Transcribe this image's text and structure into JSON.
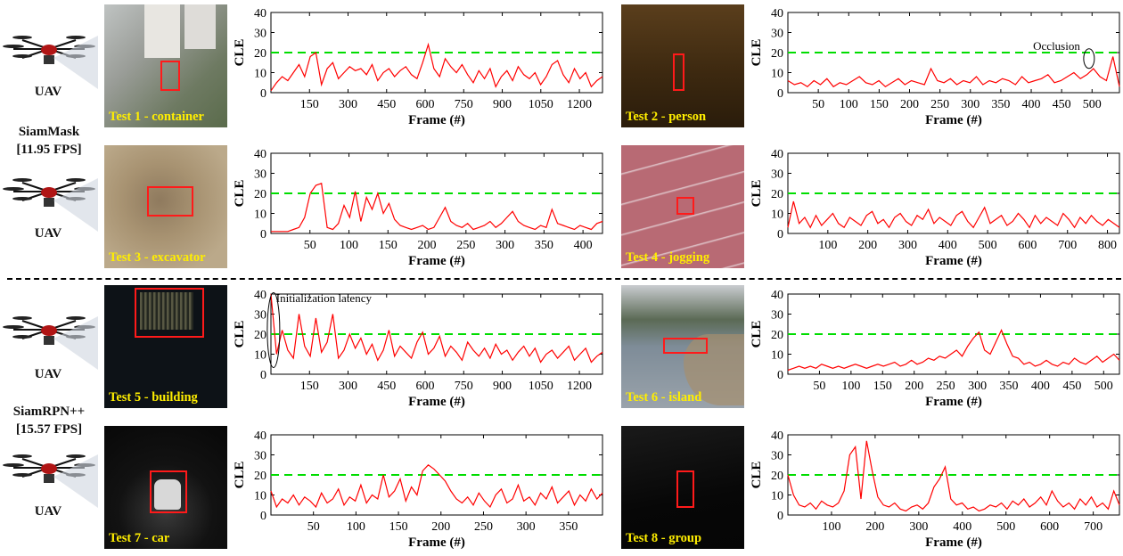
{
  "drones": [
    {
      "label": "UAV"
    },
    {
      "label": "UAV"
    },
    {
      "label": "UAV"
    },
    {
      "label": "UAV"
    }
  ],
  "trackers": [
    {
      "name": "SiamMask",
      "fps": "[11.95 FPS]"
    },
    {
      "name": "SiamRPN++",
      "fps": "[15.57 FPS]"
    }
  ],
  "thumbnails": [
    {
      "caption": "Test 1 - container",
      "bg": "#8c8f8a"
    },
    {
      "caption": "Test 2 - person",
      "bg": "#3a2a12"
    },
    {
      "caption": "Test 3 - excavator",
      "bg": "#a88e6c"
    },
    {
      "caption": "Test 4 - jogging",
      "bg": "#b8707a"
    },
    {
      "caption": "Test 5 - building",
      "bg": "#0e1318"
    },
    {
      "caption": "Test 6 - island",
      "bg": "#6c7884"
    },
    {
      "caption": "Test 7 - car",
      "bg": "#0c0c0c"
    },
    {
      "caption": "Test 8 - group",
      "bg": "#080808"
    }
  ],
  "colors": {
    "error": "#ff0000",
    "threshold": "#00dd00",
    "box": "#ff1a1a",
    "caption": "#ffee00"
  },
  "chart_data": [
    {
      "type": "line",
      "series": [
        {
          "values": [
            1,
            5,
            8,
            6,
            10,
            14,
            8,
            18,
            20,
            4,
            12,
            15,
            7,
            10,
            13,
            11,
            12,
            9,
            14,
            6,
            10,
            12,
            8,
            11,
            13,
            9,
            7,
            15,
            24,
            12,
            8,
            17,
            13,
            10,
            14,
            9,
            5,
            11,
            7,
            12,
            3,
            8,
            11,
            6,
            13,
            9,
            7,
            10,
            4,
            8,
            14,
            16,
            9,
            5,
            12,
            7,
            10,
            3,
            6,
            8
          ]
        }
      ],
      "xlabel": "Frame (#)",
      "ylabel": "CLE",
      "xlim": [
        0,
        1290
      ],
      "ylim": [
        0,
        40
      ],
      "xticks": [
        150,
        300,
        450,
        600,
        750,
        900,
        1050,
        1200
      ],
      "xtick_labels": [
        "150",
        "300",
        "450",
        "600",
        "750",
        "900",
        "1050",
        "1200"
      ],
      "yticks": [
        0,
        10,
        20,
        30,
        40
      ],
      "ytick_labels": [
        "0",
        "10",
        "20",
        "30",
        "40"
      ],
      "threshold": 20
    },
    {
      "type": "line",
      "series": [
        {
          "values": [
            6,
            4,
            5,
            3,
            6,
            4,
            7,
            3,
            5,
            4,
            6,
            8,
            5,
            4,
            6,
            3,
            5,
            7,
            4,
            6,
            5,
            4,
            12,
            6,
            5,
            7,
            4,
            6,
            5,
            8,
            4,
            6,
            5,
            7,
            6,
            4,
            8,
            5,
            6,
            7,
            9,
            5,
            6,
            8,
            10,
            7,
            9,
            12,
            8,
            6,
            18,
            3
          ]
        }
      ],
      "xlabel": "Frame (#)",
      "ylabel": "CLE",
      "xlim": [
        0,
        545
      ],
      "ylim": [
        0,
        40
      ],
      "xticks": [
        50,
        100,
        150,
        200,
        250,
        300,
        350,
        400,
        450,
        500
      ],
      "xtick_labels": [
        "50",
        "100",
        "150",
        "200",
        "250",
        "300",
        "350",
        "400",
        "450",
        "500"
      ],
      "yticks": [
        0,
        10,
        20,
        30,
        40
      ],
      "ytick_labels": [
        "0",
        "10",
        "20",
        "30",
        "40"
      ],
      "threshold": 20,
      "annotations": [
        {
          "text": "Occlusion",
          "x": 495,
          "y": 17
        }
      ]
    },
    {
      "type": "line",
      "series": [
        {
          "values": [
            1,
            1,
            1,
            1,
            2,
            3,
            8,
            20,
            24,
            25,
            3,
            2,
            5,
            14,
            8,
            21,
            6,
            18,
            12,
            20,
            10,
            15,
            7,
            4,
            3,
            2,
            3,
            4,
            2,
            3,
            8,
            13,
            6,
            4,
            3,
            5,
            2,
            3,
            4,
            6,
            3,
            5,
            8,
            11,
            6,
            4,
            3,
            2,
            4,
            3,
            12,
            5,
            4,
            3,
            2,
            4,
            3,
            2,
            5,
            6
          ]
        }
      ],
      "xlabel": "Frame (#)",
      "ylabel": "CLE",
      "xlim": [
        0,
        425
      ],
      "ylim": [
        0,
        40
      ],
      "xticks": [
        50,
        100,
        150,
        200,
        250,
        300,
        350,
        400
      ],
      "xtick_labels": [
        "50",
        "100",
        "150",
        "200",
        "250",
        "300",
        "350",
        "400"
      ],
      "yticks": [
        0,
        10,
        20,
        30,
        40
      ],
      "ytick_labels": [
        "0",
        "10",
        "20",
        "30",
        "40"
      ],
      "threshold": 20
    },
    {
      "type": "line",
      "series": [
        {
          "values": [
            3,
            16,
            5,
            8,
            3,
            9,
            4,
            7,
            10,
            5,
            3,
            8,
            6,
            4,
            9,
            11,
            5,
            7,
            3,
            8,
            10,
            6,
            4,
            9,
            7,
            12,
            5,
            8,
            6,
            4,
            9,
            11,
            6,
            3,
            8,
            13,
            5,
            7,
            9,
            4,
            6,
            10,
            7,
            3,
            9,
            5,
            8,
            6,
            4,
            10,
            7,
            3,
            8,
            5,
            9,
            6,
            4,
            7,
            5,
            3
          ]
        }
      ],
      "xlabel": "Frame (#)",
      "ylabel": "CLE",
      "xlim": [
        0,
        830
      ],
      "ylim": [
        0,
        40
      ],
      "xticks": [
        100,
        200,
        300,
        400,
        500,
        600,
        700,
        800
      ],
      "xtick_labels": [
        "100",
        "200",
        "300",
        "400",
        "500",
        "600",
        "700",
        "800"
      ],
      "yticks": [
        0,
        10,
        20,
        30,
        40
      ],
      "ytick_labels": [
        "0",
        "10",
        "20",
        "30",
        "40"
      ],
      "threshold": 20
    },
    {
      "type": "line",
      "series": [
        {
          "values": [
            40,
            10,
            22,
            12,
            8,
            30,
            14,
            9,
            28,
            11,
            16,
            30,
            8,
            12,
            20,
            13,
            18,
            10,
            15,
            7,
            12,
            22,
            9,
            14,
            11,
            8,
            16,
            21,
            10,
            13,
            19,
            9,
            14,
            11,
            7,
            16,
            12,
            9,
            13,
            8,
            15,
            10,
            12,
            7,
            11,
            14,
            9,
            13,
            6,
            10,
            12,
            8,
            11,
            14,
            7,
            10,
            13,
            6,
            9,
            11
          ]
        }
      ],
      "xlabel": "Frame (#)",
      "ylabel": "CLE",
      "xlim": [
        0,
        1290
      ],
      "ylim": [
        0,
        40
      ],
      "xticks": [
        150,
        300,
        450,
        600,
        750,
        900,
        1050,
        1200
      ],
      "xtick_labels": [
        "150",
        "300",
        "450",
        "600",
        "750",
        "900",
        "1050",
        "1200"
      ],
      "yticks": [
        0,
        10,
        20,
        30,
        40
      ],
      "ytick_labels": [
        "0",
        "10",
        "20",
        "30",
        "40"
      ],
      "threshold": 20,
      "annotations": [
        {
          "text": "Initialization latency",
          "x": 20,
          "y": 31
        }
      ]
    },
    {
      "type": "line",
      "series": [
        {
          "values": [
            2,
            3,
            4,
            3,
            4,
            3,
            5,
            4,
            3,
            4,
            3,
            4,
            5,
            4,
            3,
            4,
            5,
            4,
            5,
            6,
            4,
            5,
            7,
            5,
            6,
            8,
            7,
            9,
            8,
            10,
            12,
            9,
            14,
            18,
            21,
            12,
            10,
            16,
            22,
            15,
            9,
            8,
            5,
            6,
            4,
            5,
            7,
            5,
            4,
            6,
            5,
            8,
            6,
            5,
            7,
            9,
            6,
            8,
            10,
            7
          ]
        }
      ],
      "xlabel": "Frame (#)",
      "ylabel": "CLE",
      "xlim": [
        0,
        525
      ],
      "ylim": [
        0,
        40
      ],
      "xticks": [
        50,
        100,
        150,
        200,
        250,
        300,
        350,
        400,
        450,
        500
      ],
      "xtick_labels": [
        "50",
        "100",
        "150",
        "200",
        "250",
        "300",
        "350",
        "400",
        "450",
        "500"
      ],
      "yticks": [
        0,
        10,
        20,
        30,
        40
      ],
      "ytick_labels": [
        "0",
        "10",
        "20",
        "30",
        "40"
      ],
      "threshold": 20
    },
    {
      "type": "line",
      "series": [
        {
          "values": [
            12,
            4,
            8,
            6,
            10,
            5,
            9,
            7,
            4,
            11,
            6,
            8,
            13,
            5,
            9,
            7,
            15,
            6,
            10,
            8,
            20,
            9,
            12,
            18,
            7,
            14,
            10,
            22,
            25,
            23,
            20,
            17,
            12,
            8,
            6,
            9,
            5,
            11,
            7,
            4,
            10,
            13,
            6,
            8,
            15,
            7,
            9,
            5,
            11,
            8,
            14,
            6,
            9,
            12,
            5,
            10,
            7,
            13,
            8,
            11
          ]
        }
      ],
      "xlabel": "Frame (#)",
      "ylabel": "CLE",
      "xlim": [
        0,
        390
      ],
      "ylim": [
        0,
        40
      ],
      "xticks": [
        50,
        100,
        150,
        200,
        250,
        300,
        350
      ],
      "xtick_labels": [
        "50",
        "100",
        "150",
        "200",
        "250",
        "300",
        "350"
      ],
      "yticks": [
        0,
        10,
        20,
        30,
        40
      ],
      "ytick_labels": [
        "0",
        "10",
        "20",
        "30",
        "40"
      ],
      "threshold": 20
    },
    {
      "type": "line",
      "series": [
        {
          "values": [
            20,
            10,
            5,
            4,
            6,
            3,
            7,
            5,
            4,
            6,
            12,
            30,
            34,
            8,
            37,
            22,
            9,
            5,
            4,
            6,
            3,
            2,
            4,
            5,
            3,
            6,
            14,
            18,
            24,
            8,
            5,
            6,
            3,
            4,
            2,
            3,
            5,
            4,
            6,
            3,
            7,
            5,
            8,
            4,
            6,
            9,
            5,
            12,
            7,
            4,
            6,
            3,
            8,
            5,
            9,
            4,
            6,
            3,
            12,
            5
          ]
        }
      ],
      "xlabel": "Frame (#)",
      "ylabel": "CLE",
      "xlim": [
        0,
        760
      ],
      "ylim": [
        0,
        40
      ],
      "xticks": [
        100,
        200,
        300,
        400,
        500,
        600,
        700
      ],
      "xtick_labels": [
        "100",
        "200",
        "300",
        "400",
        "500",
        "600",
        "700"
      ],
      "yticks": [
        0,
        10,
        20,
        30,
        40
      ],
      "ytick_labels": [
        "0",
        "10",
        "20",
        "30",
        "40"
      ],
      "threshold": 20
    }
  ]
}
